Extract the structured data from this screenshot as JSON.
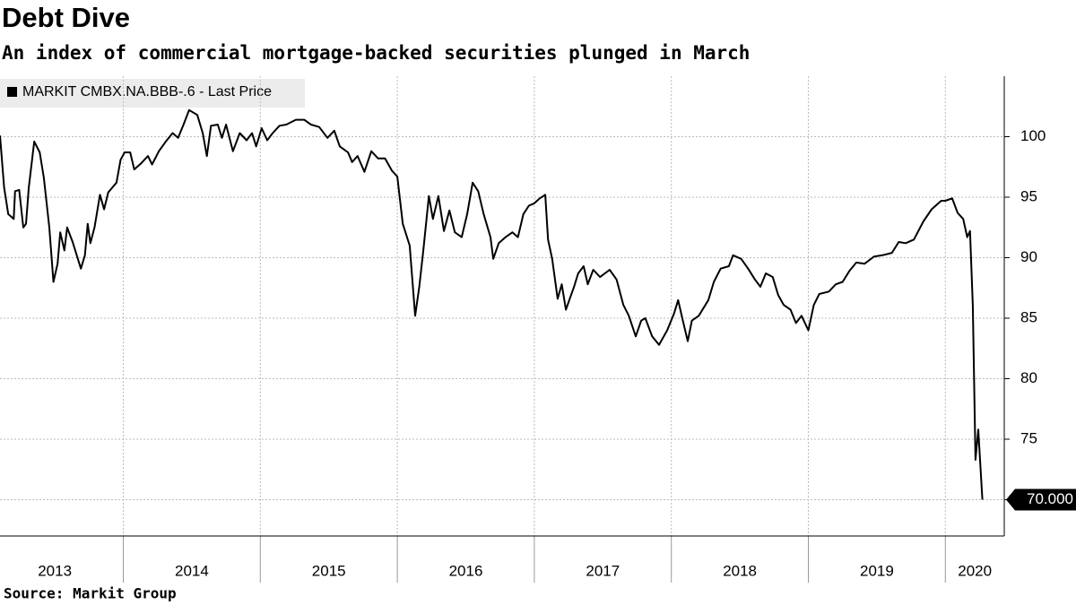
{
  "chart_data": {
    "type": "line",
    "title": "Debt Dive",
    "subtitle": "An index of commercial mortgage-backed securities plunged in March",
    "source": "Source:  Markit Group",
    "series": [
      {
        "name": "MARKIT CMBX.NA.BBB-.6 - Last Price",
        "color": "#000000",
        "last_label": "70.000",
        "x": [
          2013.1,
          2013.13,
          2013.16,
          2013.2,
          2013.21,
          2013.24,
          2013.27,
          2013.29,
          2013.31,
          2013.35,
          2013.39,
          2013.42,
          2013.46,
          2013.49,
          2013.52,
          2013.54,
          2013.57,
          2013.59,
          2013.63,
          2013.69,
          2013.72,
          2013.74,
          2013.76,
          2013.79,
          2013.83,
          2013.86,
          2013.89,
          2013.95,
          2013.98,
          2014.01,
          2014.05,
          2014.08,
          2014.13,
          2014.18,
          2014.21,
          2014.26,
          2014.31,
          2014.36,
          2014.4,
          2014.44,
          2014.48,
          2014.54,
          2014.58,
          2014.61,
          2014.64,
          2014.69,
          2014.72,
          2014.75,
          2014.8,
          2014.85,
          2014.9,
          2014.94,
          2014.97,
          2015.01,
          2015.05,
          2015.09,
          2015.14,
          2015.19,
          2015.26,
          2015.32,
          2015.37,
          2015.43,
          2015.49,
          2015.54,
          2015.58,
          2015.64,
          2015.67,
          2015.71,
          2015.76,
          2015.81,
          2015.86,
          2015.91,
          2015.96,
          2016.0,
          2016.04,
          2016.09,
          2016.13,
          2016.16,
          2016.19,
          2016.23,
          2016.26,
          2016.3,
          2016.34,
          2016.38,
          2016.42,
          2016.47,
          2016.51,
          2016.55,
          2016.59,
          2016.63,
          2016.68,
          2016.7,
          2016.74,
          2016.79,
          2016.84,
          2016.88,
          2016.92,
          2016.96,
          2017.0,
          2017.04,
          2017.08,
          2017.1,
          2017.13,
          2017.17,
          2017.2,
          2017.23,
          2017.29,
          2017.32,
          2017.36,
          2017.39,
          2017.43,
          2017.48,
          2017.55,
          2017.6,
          2017.65,
          2017.69,
          2017.74,
          2017.78,
          2017.81,
          2017.86,
          2017.91,
          2017.97,
          2018.02,
          2018.05,
          2018.08,
          2018.12,
          2018.15,
          2018.2,
          2018.27,
          2018.31,
          2018.36,
          2018.42,
          2018.45,
          2018.51,
          2018.56,
          2018.61,
          2018.65,
          2018.69,
          2018.74,
          2018.78,
          2018.82,
          2018.87,
          2018.91,
          2018.95,
          2019.0,
          2019.04,
          2019.08,
          2019.15,
          2019.2,
          2019.25,
          2019.3,
          2019.35,
          2019.41,
          2019.48,
          2019.54,
          2019.61,
          2019.66,
          2019.71,
          2019.77,
          2019.84,
          2019.9,
          2019.97,
          2020.0,
          2020.05,
          2020.09,
          2020.13,
          2020.16,
          2020.18,
          2020.2,
          2020.22,
          2020.24,
          2020.27
        ],
        "values": [
          100.1,
          95.8,
          93.6,
          93.2,
          95.5,
          95.6,
          92.5,
          92.8,
          95.8,
          99.6,
          98.7,
          96.6,
          92.5,
          88.0,
          89.5,
          92.1,
          90.6,
          92.5,
          91.3,
          89.1,
          90.2,
          92.8,
          91.2,
          92.5,
          95.2,
          94.0,
          95.4,
          96.2,
          98.1,
          98.7,
          98.7,
          97.3,
          97.8,
          98.4,
          97.7,
          98.8,
          99.6,
          100.3,
          99.9,
          101.0,
          102.2,
          101.8,
          100.3,
          98.4,
          100.9,
          101.0,
          99.9,
          101.0,
          98.8,
          100.3,
          99.7,
          100.3,
          99.2,
          100.7,
          99.7,
          100.3,
          100.9,
          101.0,
          101.4,
          101.4,
          101.0,
          100.8,
          99.9,
          100.5,
          99.2,
          98.7,
          97.9,
          98.4,
          97.1,
          98.8,
          98.2,
          98.2,
          97.2,
          96.7,
          92.8,
          91.0,
          85.2,
          87.6,
          90.6,
          95.1,
          93.2,
          95.1,
          92.2,
          93.9,
          92.1,
          91.7,
          93.6,
          96.2,
          95.5,
          93.6,
          91.7,
          89.9,
          91.2,
          91.7,
          92.1,
          91.7,
          93.6,
          94.3,
          94.5,
          94.9,
          95.2,
          91.5,
          89.9,
          86.6,
          87.8,
          85.7,
          87.6,
          88.7,
          89.3,
          87.8,
          89.0,
          88.4,
          89.0,
          88.2,
          86.1,
          85.2,
          83.5,
          84.8,
          85.0,
          83.5,
          82.8,
          84.0,
          85.4,
          86.5,
          85.0,
          83.1,
          84.8,
          85.2,
          86.5,
          88.0,
          89.1,
          89.3,
          90.2,
          89.9,
          89.1,
          88.2,
          87.6,
          88.7,
          88.4,
          86.9,
          86.1,
          85.7,
          84.6,
          85.2,
          84.0,
          86.1,
          87.0,
          87.2,
          87.8,
          88.0,
          88.9,
          89.6,
          89.5,
          90.1,
          90.2,
          90.4,
          91.3,
          91.2,
          91.5,
          93.0,
          94.0,
          94.7,
          94.7,
          94.9,
          93.7,
          93.2,
          91.7,
          92.2,
          86.1,
          73.3,
          75.8,
          70.0
        ]
      }
    ],
    "xlim": [
      2013.1,
      2020.43
    ],
    "xticks": [
      2014,
      2015,
      2016,
      2017,
      2018,
      2019,
      2020
    ],
    "year_labels": [
      2013,
      2014,
      2015,
      2016,
      2017,
      2018,
      2019,
      2020
    ],
    "ylim": [
      67,
      105
    ],
    "yticks": [
      70,
      75,
      80,
      85,
      90,
      95,
      100
    ],
    "grid": true
  }
}
